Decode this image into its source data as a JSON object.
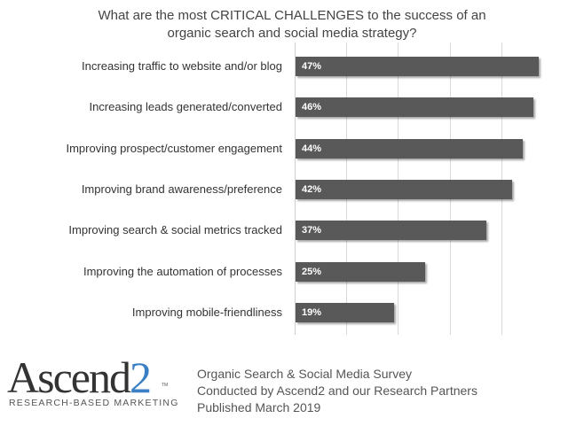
{
  "chart_data": {
    "type": "bar",
    "orientation": "horizontal",
    "title": "What are the most CRITICAL CHALLENGES to the success of an organic search and social media strategy?",
    "title_lines": [
      "What are the most CRITICAL CHALLENGES to the success of an",
      "organic search and social media strategy?"
    ],
    "categories": [
      "Increasing traffic to website and/or blog",
      "Increasing leads generated/converted",
      "Improving prospect/customer engagement",
      "Improving brand awareness/preference",
      "Improving search & social metrics tracked",
      "Improving the automation of processes",
      "Improving mobile-friendliness"
    ],
    "values": [
      47,
      46,
      44,
      42,
      37,
      25,
      19
    ],
    "value_labels": [
      "47%",
      "46%",
      "44%",
      "42%",
      "37%",
      "25%",
      "19%"
    ],
    "xlabel": "",
    "ylabel": "",
    "xlim": [
      0,
      50
    ],
    "grid": true,
    "gridlines_at": [
      0,
      10,
      20,
      30,
      40
    ],
    "legend": null,
    "bar_color": "#595959"
  },
  "branding": {
    "logo_word": "Ascend",
    "logo_digit": "2",
    "logo_tm": "TM",
    "logo_tagline": "RESEARCH-BASED MARKETING",
    "logo_accent_color": "#3a7fc4"
  },
  "credits": {
    "line1": "Organic Search & Social Media Survey",
    "line2": "Conducted by Ascend2 and our Research Partners",
    "line3": "Published March 2019"
  }
}
